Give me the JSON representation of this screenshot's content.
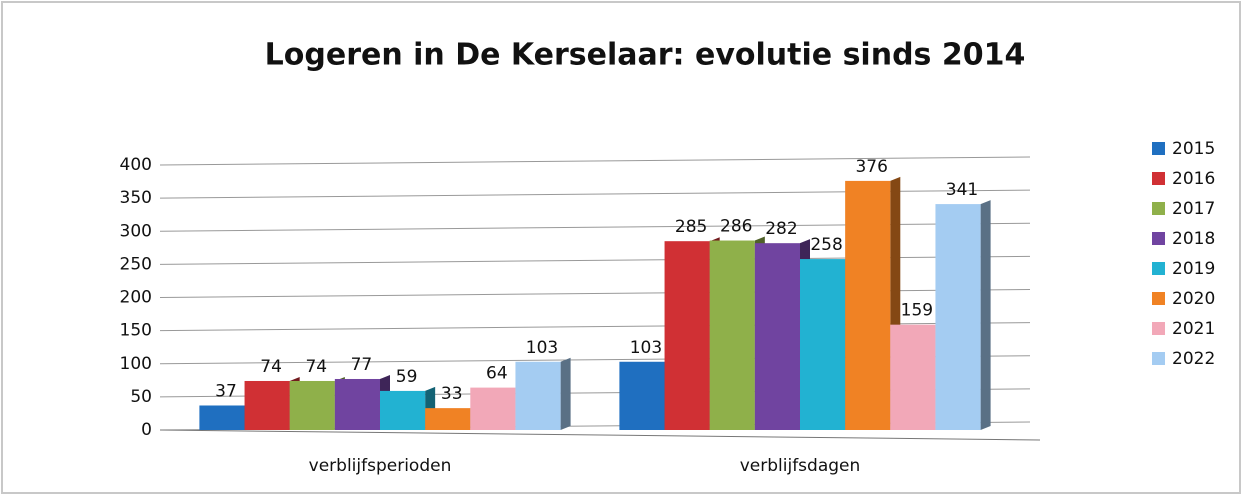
{
  "chart_data": {
    "type": "bar",
    "title": "Logeren in De Kerselaar: evolutie sinds 2014",
    "categories": [
      "verblijfsperioden",
      "verblijfsdagen"
    ],
    "series": [
      {
        "name": "2015",
        "color": "#1f6fc0",
        "values": [
          37,
          103
        ]
      },
      {
        "name": "2016",
        "color": "#d03034",
        "values": [
          74,
          285
        ]
      },
      {
        "name": "2017",
        "color": "#8fb04a",
        "values": [
          74,
          286
        ]
      },
      {
        "name": "2018",
        "color": "#7044a0",
        "values": [
          77,
          282
        ]
      },
      {
        "name": "2019",
        "color": "#22b2d2",
        "values": [
          59,
          258
        ]
      },
      {
        "name": "2020",
        "color": "#f08224",
        "values": [
          33,
          376
        ]
      },
      {
        "name": "2021",
        "color": "#f2a8b8",
        "values": [
          64,
          159
        ]
      },
      {
        "name": "2022",
        "color": "#a4ccf2",
        "values": [
          103,
          341
        ]
      }
    ],
    "ylim": [
      0,
      400
    ],
    "yticks": [
      0,
      50,
      100,
      150,
      200,
      250,
      300,
      350,
      400
    ],
    "grid": true,
    "legend": "right"
  }
}
